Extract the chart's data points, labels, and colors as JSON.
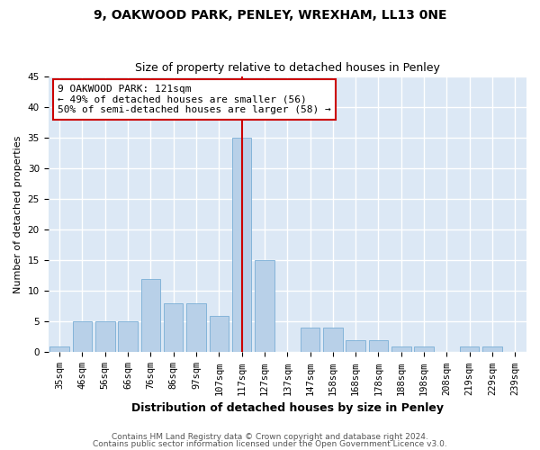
{
  "title1": "9, OAKWOOD PARK, PENLEY, WREXHAM, LL13 0NE",
  "title2": "Size of property relative to detached houses in Penley",
  "xlabel": "Distribution of detached houses by size in Penley",
  "ylabel": "Number of detached properties",
  "categories": [
    "35sqm",
    "46sqm",
    "56sqm",
    "66sqm",
    "76sqm",
    "86sqm",
    "97sqm",
    "107sqm",
    "117sqm",
    "127sqm",
    "137sqm",
    "147sqm",
    "158sqm",
    "168sqm",
    "178sqm",
    "188sqm",
    "198sqm",
    "208sqm",
    "219sqm",
    "229sqm",
    "239sqm"
  ],
  "values": [
    1,
    5,
    5,
    5,
    12,
    8,
    8,
    6,
    35,
    15,
    0,
    4,
    4,
    2,
    2,
    1,
    1,
    0,
    1,
    1,
    0
  ],
  "bar_color": "#b8d0e8",
  "bar_edge_color": "#7aaed6",
  "vline_x_index": 8,
  "vline_color": "#cc0000",
  "ylim": [
    0,
    45
  ],
  "yticks": [
    0,
    5,
    10,
    15,
    20,
    25,
    30,
    35,
    40,
    45
  ],
  "annotation_line1": "9 OAKWOOD PARK: 121sqm",
  "annotation_line2": "← 49% of detached houses are smaller (56)",
  "annotation_line3": "50% of semi-detached houses are larger (58) →",
  "annotation_box_color": "#ffffff",
  "annotation_box_edge": "#cc0000",
  "footer_line1": "Contains HM Land Registry data © Crown copyright and database right 2024.",
  "footer_line2": "Contains public sector information licensed under the Open Government Licence v3.0.",
  "plot_bg_color": "#dce8f5",
  "fig_bg_color": "#ffffff",
  "grid_color": "#ffffff",
  "title1_fontsize": 10,
  "title2_fontsize": 9,
  "ylabel_fontsize": 8,
  "xlabel_fontsize": 9,
  "tick_fontsize": 7.5,
  "footer_fontsize": 6.5,
  "annotation_fontsize": 8
}
